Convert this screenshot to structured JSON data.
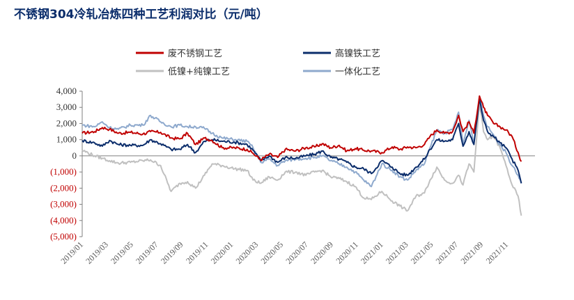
{
  "chart_data": {
    "type": "line",
    "title": "不锈钢304冷轧冶炼四种工艺利润对比（元/吨）",
    "xlabel": "",
    "ylabel": "",
    "ylim": [
      -5000,
      4000
    ],
    "yticks": [
      4000,
      3000,
      2000,
      1000,
      0,
      -1000,
      -2000,
      -3000,
      -4000,
      -5000
    ],
    "ytick_labels": [
      "4,000",
      "3,000",
      "2,000",
      "1,000",
      "0",
      "(1,000)",
      "(2,000)",
      "(3,000)",
      "(4,000)",
      "(5,000)"
    ],
    "negative_tick_color": "#c00000",
    "positive_tick_color": "#333333",
    "x_start": "2019/01/01",
    "x_end": "2022/01/31",
    "xtick_labels": [
      "2019/01",
      "2019/03",
      "2019/05",
      "2019/07",
      "2019/09",
      "2019/11",
      "2020/01",
      "2020/03",
      "2020/05",
      "2020/07",
      "2020/09",
      "2020/11",
      "2021/01",
      "2021/03",
      "2021/05",
      "2021/07",
      "2021/09",
      "2021/11"
    ],
    "legend_position": "top",
    "series": [
      {
        "name": "废不锈钢工艺",
        "color": "#c00000",
        "points": [
          [
            "2019/01/01",
            1400
          ],
          [
            "2019/02/01",
            1500
          ],
          [
            "2019/02/20",
            1750
          ],
          [
            "2019/03/10",
            1650
          ],
          [
            "2019/04/01",
            1400
          ],
          [
            "2019/05/01",
            1450
          ],
          [
            "2019/06/01",
            1350
          ],
          [
            "2019/06/20",
            1500
          ],
          [
            "2019/07/15",
            1450
          ],
          [
            "2019/08/10",
            1100
          ],
          [
            "2019/09/01",
            1050
          ],
          [
            "2019/09/20",
            1400
          ],
          [
            "2019/10/10",
            700
          ],
          [
            "2019/11/01",
            1100
          ],
          [
            "2019/11/20",
            950
          ],
          [
            "2019/12/15",
            500
          ],
          [
            "2020/01/15",
            500
          ],
          [
            "2020/02/15",
            400
          ],
          [
            "2020/03/01",
            150
          ],
          [
            "2020/03/20",
            -250
          ],
          [
            "2020/04/10",
            100
          ],
          [
            "2020/05/01",
            -100
          ],
          [
            "2020/05/20",
            400
          ],
          [
            "2020/06/15",
            300
          ],
          [
            "2020/07/10",
            500
          ],
          [
            "2020/08/01",
            550
          ],
          [
            "2020/08/20",
            750
          ],
          [
            "2020/09/10",
            500
          ],
          [
            "2020/10/01",
            650
          ],
          [
            "2020/10/20",
            300
          ],
          [
            "2020/11/10",
            450
          ],
          [
            "2020/12/01",
            350
          ],
          [
            "2020/12/20",
            300
          ],
          [
            "2021/01/15",
            200
          ],
          [
            "2021/02/10",
            550
          ],
          [
            "2021/03/01",
            400
          ],
          [
            "2021/03/20",
            550
          ],
          [
            "2021/04/10",
            500
          ],
          [
            "2021/05/01",
            700
          ],
          [
            "2021/05/15",
            1200
          ],
          [
            "2021/06/01",
            1600
          ],
          [
            "2021/06/20",
            1400
          ],
          [
            "2021/07/10",
            1500
          ],
          [
            "2021/07/25",
            2500
          ],
          [
            "2021/08/05",
            1500
          ],
          [
            "2021/08/20",
            2100
          ],
          [
            "2021/09/01",
            1400
          ],
          [
            "2021/09/15",
            3700
          ],
          [
            "2021/09/25",
            3000
          ],
          [
            "2021/10/05",
            2500
          ],
          [
            "2021/10/20",
            2000
          ],
          [
            "2021/11/05",
            1800
          ],
          [
            "2021/11/20",
            1600
          ],
          [
            "2021/12/05",
            1200
          ],
          [
            "2021/12/20",
            200
          ],
          [
            "2021/12/28",
            -350
          ]
        ]
      },
      {
        "name": "高镍铁工艺",
        "color": "#0b2d6b",
        "points": [
          [
            "2019/01/01",
            950
          ],
          [
            "2019/02/01",
            800
          ],
          [
            "2019/02/20",
            600
          ],
          [
            "2019/03/10",
            950
          ],
          [
            "2019/04/01",
            700
          ],
          [
            "2019/05/01",
            650
          ],
          [
            "2019/06/01",
            650
          ],
          [
            "2019/06/20",
            1000
          ],
          [
            "2019/07/15",
            750
          ],
          [
            "2019/08/10",
            400
          ],
          [
            "2019/09/01",
            400
          ],
          [
            "2019/09/20",
            700
          ],
          [
            "2019/10/10",
            200
          ],
          [
            "2019/11/01",
            900
          ],
          [
            "2019/11/20",
            1000
          ],
          [
            "2019/12/15",
            900
          ],
          [
            "2020/01/15",
            850
          ],
          [
            "2020/02/15",
            700
          ],
          [
            "2020/03/01",
            350
          ],
          [
            "2020/03/20",
            -300
          ],
          [
            "2020/04/10",
            0
          ],
          [
            "2020/05/01",
            -400
          ],
          [
            "2020/05/20",
            -100
          ],
          [
            "2020/06/15",
            -150
          ],
          [
            "2020/07/10",
            0
          ],
          [
            "2020/08/01",
            100
          ],
          [
            "2020/08/20",
            300
          ],
          [
            "2020/09/10",
            -100
          ],
          [
            "2020/10/01",
            -200
          ],
          [
            "2020/10/20",
            -400
          ],
          [
            "2020/11/10",
            -700
          ],
          [
            "2020/12/01",
            -800
          ],
          [
            "2020/12/20",
            -1100
          ],
          [
            "2021/01/15",
            -300
          ],
          [
            "2021/02/10",
            -700
          ],
          [
            "2021/03/01",
            -1100
          ],
          [
            "2021/03/20",
            -1200
          ],
          [
            "2021/04/10",
            -700
          ],
          [
            "2021/05/01",
            -200
          ],
          [
            "2021/05/15",
            400
          ],
          [
            "2021/06/01",
            1000
          ],
          [
            "2021/06/20",
            900
          ],
          [
            "2021/07/10",
            1000
          ],
          [
            "2021/07/25",
            2000
          ],
          [
            "2021/08/05",
            600
          ],
          [
            "2021/08/20",
            1500
          ],
          [
            "2021/09/01",
            700
          ],
          [
            "2021/09/15",
            3500
          ],
          [
            "2021/09/25",
            2200
          ],
          [
            "2021/10/05",
            1500
          ],
          [
            "2021/10/20",
            1200
          ],
          [
            "2021/11/05",
            800
          ],
          [
            "2021/11/20",
            500
          ],
          [
            "2021/12/05",
            -200
          ],
          [
            "2021/12/20",
            -900
          ],
          [
            "2021/12/28",
            -1700
          ]
        ]
      },
      {
        "name": "低镍+纯镍工艺",
        "color": "#c0c0c0",
        "points": [
          [
            "2019/01/01",
            350
          ],
          [
            "2019/02/01",
            0
          ],
          [
            "2019/02/20",
            -150
          ],
          [
            "2019/03/10",
            -300
          ],
          [
            "2019/04/01",
            -450
          ],
          [
            "2019/05/01",
            -400
          ],
          [
            "2019/06/01",
            -300
          ],
          [
            "2019/06/20",
            -250
          ],
          [
            "2019/07/15",
            -600
          ],
          [
            "2019/08/10",
            -2200
          ],
          [
            "2019/09/01",
            -1700
          ],
          [
            "2019/09/20",
            -1600
          ],
          [
            "2019/10/10",
            -2000
          ],
          [
            "2019/11/01",
            -1200
          ],
          [
            "2019/11/20",
            -500
          ],
          [
            "2019/12/15",
            -600
          ],
          [
            "2020/01/15",
            -800
          ],
          [
            "2020/02/15",
            -900
          ],
          [
            "2020/03/01",
            -1500
          ],
          [
            "2020/03/20",
            -1700
          ],
          [
            "2020/04/10",
            -1300
          ],
          [
            "2020/05/01",
            -1500
          ],
          [
            "2020/05/20",
            -1000
          ],
          [
            "2020/06/15",
            -1000
          ],
          [
            "2020/07/10",
            -1200
          ],
          [
            "2020/08/01",
            -1000
          ],
          [
            "2020/08/20",
            -900
          ],
          [
            "2020/09/10",
            -1300
          ],
          [
            "2020/10/01",
            -1400
          ],
          [
            "2020/10/20",
            -1600
          ],
          [
            "2020/11/10",
            -1900
          ],
          [
            "2020/12/01",
            -2600
          ],
          [
            "2020/12/20",
            -2700
          ],
          [
            "2021/01/15",
            -2200
          ],
          [
            "2021/02/10",
            -2800
          ],
          [
            "2021/03/01",
            -3100
          ],
          [
            "2021/03/20",
            -3400
          ],
          [
            "2021/04/10",
            -2500
          ],
          [
            "2021/05/01",
            -2300
          ],
          [
            "2021/05/15",
            -1500
          ],
          [
            "2021/06/01",
            -700
          ],
          [
            "2021/06/20",
            -1500
          ],
          [
            "2021/07/10",
            -1700
          ],
          [
            "2021/07/25",
            -1200
          ],
          [
            "2021/08/05",
            -1800
          ],
          [
            "2021/08/20",
            -500
          ],
          [
            "2021/09/01",
            -1000
          ],
          [
            "2021/09/15",
            3300
          ],
          [
            "2021/09/25",
            1500
          ],
          [
            "2021/10/05",
            1000
          ],
          [
            "2021/10/20",
            1200
          ],
          [
            "2021/11/05",
            500
          ],
          [
            "2021/11/20",
            -600
          ],
          [
            "2021/12/05",
            -1800
          ],
          [
            "2021/12/20",
            -2500
          ],
          [
            "2021/12/28",
            -3700
          ]
        ]
      },
      {
        "name": "一体化工艺",
        "color": "#8ea9cd",
        "points": [
          [
            "2019/01/01",
            1900
          ],
          [
            "2019/02/01",
            1800
          ],
          [
            "2019/02/20",
            2100
          ],
          [
            "2019/03/10",
            1750
          ],
          [
            "2019/04/01",
            1650
          ],
          [
            "2019/05/01",
            1900
          ],
          [
            "2019/06/01",
            1900
          ],
          [
            "2019/06/20",
            2500
          ],
          [
            "2019/07/15",
            2100
          ],
          [
            "2019/08/10",
            1800
          ],
          [
            "2019/09/01",
            1900
          ],
          [
            "2019/09/20",
            1800
          ],
          [
            "2019/10/10",
            1800
          ],
          [
            "2019/11/01",
            1700
          ],
          [
            "2019/11/20",
            1400
          ],
          [
            "2019/12/15",
            1100
          ],
          [
            "2020/01/15",
            1000
          ],
          [
            "2020/02/15",
            900
          ],
          [
            "2020/03/01",
            500
          ],
          [
            "2020/03/20",
            -400
          ],
          [
            "2020/04/10",
            -200
          ],
          [
            "2020/05/01",
            -600
          ],
          [
            "2020/05/20",
            -300
          ],
          [
            "2020/06/15",
            -200
          ],
          [
            "2020/07/10",
            -150
          ],
          [
            "2020/08/01",
            -100
          ],
          [
            "2020/08/20",
            0
          ],
          [
            "2020/09/10",
            -300
          ],
          [
            "2020/10/01",
            -500
          ],
          [
            "2020/10/20",
            -700
          ],
          [
            "2020/11/10",
            -1000
          ],
          [
            "2020/12/01",
            -1500
          ],
          [
            "2020/12/20",
            -1900
          ],
          [
            "2021/01/15",
            -500
          ],
          [
            "2021/02/10",
            -900
          ],
          [
            "2021/03/01",
            -1300
          ],
          [
            "2021/03/20",
            -1500
          ],
          [
            "2021/04/10",
            -900
          ],
          [
            "2021/05/01",
            -500
          ],
          [
            "2021/05/15",
            500
          ],
          [
            "2021/06/01",
            1600
          ],
          [
            "2021/06/20",
            1400
          ],
          [
            "2021/07/10",
            1600
          ],
          [
            "2021/07/25",
            2700
          ],
          [
            "2021/08/05",
            700
          ],
          [
            "2021/08/20",
            2200
          ],
          [
            "2021/09/01",
            800
          ],
          [
            "2021/09/15",
            3700
          ],
          [
            "2021/09/25",
            2500
          ],
          [
            "2021/10/05",
            1800
          ],
          [
            "2021/10/20",
            1300
          ],
          [
            "2021/11/05",
            700
          ],
          [
            "2021/11/20",
            200
          ],
          [
            "2021/12/05",
            -600
          ],
          [
            "2021/12/20",
            -1200
          ],
          [
            "2021/12/28",
            -1700
          ]
        ]
      }
    ]
  }
}
